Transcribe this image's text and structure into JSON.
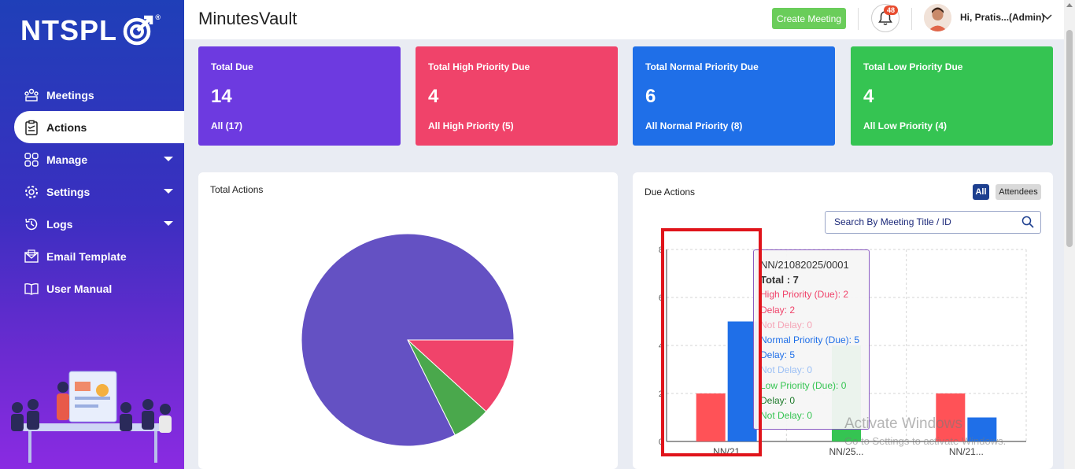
{
  "brand": {
    "logo_text": "NTSPL",
    "logo_reg": "®"
  },
  "sidebar": {
    "items": [
      {
        "label": "Meetings",
        "icon": "meetings-icon",
        "active": false,
        "caret": false
      },
      {
        "label": "Actions",
        "icon": "clipboard-icon",
        "active": true,
        "caret": false
      },
      {
        "label": "Manage",
        "icon": "grid-icon",
        "active": false,
        "caret": true
      },
      {
        "label": "Settings",
        "icon": "gear-icon",
        "active": false,
        "caret": true
      },
      {
        "label": "Logs",
        "icon": "history-icon",
        "active": false,
        "caret": true
      },
      {
        "label": "Email Template",
        "icon": "envelope-icon",
        "active": false,
        "caret": false
      },
      {
        "label": "User Manual",
        "icon": "book-icon",
        "active": false,
        "caret": false
      }
    ]
  },
  "header": {
    "title": "MinutesVault",
    "create_label": "Create Meeting",
    "notification_count": "48",
    "user_label": "Hi, Pratis...(Admin)"
  },
  "cards": [
    {
      "title": "Total Due",
      "value": "14",
      "link": "All (17)",
      "color": "#6d3ae0"
    },
    {
      "title": "Total High Priority Due",
      "value": "4",
      "link": "All High Priority (5)",
      "color": "#f0436a"
    },
    {
      "title": "Total Normal Priority Due",
      "value": "6",
      "link": "All Normal Priority (8)",
      "color": "#1f6fe8"
    },
    {
      "title": "Total Low Priority Due",
      "value": "4",
      "link": "All Low Priority (4)",
      "color": "#35c452"
    }
  ],
  "total_actions": {
    "title": "Total Actions"
  },
  "due_actions": {
    "title": "Due Actions",
    "toggle_all": "All",
    "toggle_attendees": "Attendees",
    "search_placeholder": "Search By Meeting Title / ID",
    "tooltip": {
      "heading": "NN/21082025/0001",
      "total": "Total : 7",
      "lines": [
        {
          "text": "High Priority (Due): 2",
          "color": "#f0436a"
        },
        {
          "text": "Delay: 2",
          "color": "#f0436a"
        },
        {
          "text": "Not Delay: 0",
          "color": "#f5a3b5"
        },
        {
          "text": "Normal Priority (Due): 5",
          "color": "#1f6fe8"
        },
        {
          "text": "Delay: 5",
          "color": "#1f6fe8"
        },
        {
          "text": "Not Delay: 0",
          "color": "#9cc0f5"
        },
        {
          "text": "Low Priority (Due): 0",
          "color": "#35c452"
        },
        {
          "text": "Delay: 0",
          "color": "#1d7a2a"
        },
        {
          "text": "Not Delay: 0",
          "color": "#35c452"
        }
      ]
    }
  },
  "chart_data": [
    {
      "type": "pie",
      "title": "Total Actions",
      "slices": [
        {
          "value": 14,
          "color": "#6451c3"
        },
        {
          "value": 2,
          "color": "#f0436a"
        },
        {
          "value": 1,
          "color": "#4aa84c"
        }
      ]
    },
    {
      "type": "bar",
      "title": "Due Actions",
      "categories": [
        "NN/21",
        "NN/25...",
        "NN/21..."
      ],
      "ylim": [
        0,
        8
      ],
      "yticks": [
        "0",
        "2",
        "4",
        "6",
        "8"
      ],
      "series": [
        {
          "values": [
            2,
            0,
            2
          ],
          "color": "#ff5257"
        },
        {
          "values": [
            5,
            0,
            1
          ],
          "color": "#1f6fe8"
        },
        {
          "values": [
            0,
            4,
            0
          ],
          "color": "#35c452"
        }
      ]
    }
  ],
  "watermark": {
    "line1": "Activate Windows",
    "line2": "Go to Settings to activate Windows."
  }
}
